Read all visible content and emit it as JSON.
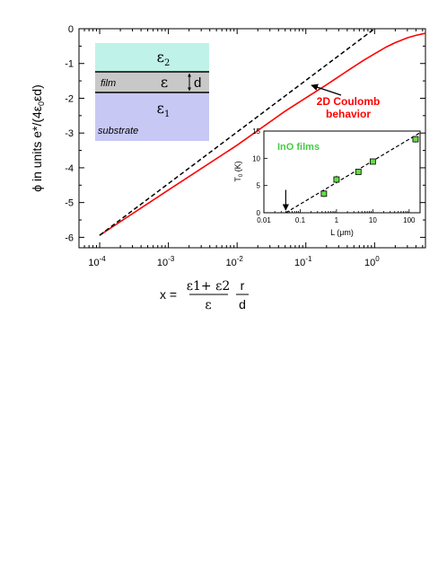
{
  "chart_data": [
    {
      "type": "line",
      "title": "",
      "xlabel": "x = (ε1+ ε2)/ε · r/d",
      "xlabel_parts": {
        "lhs": "x =",
        "num": "ε1+ ε2",
        "den": "ε",
        "r": "r",
        "d": "d"
      },
      "ylabel": "ϕ in units e*/(4ε0εd)",
      "xscale": "log",
      "xlim": [
        5e-05,
        5.5
      ],
      "ylim": [
        -6.3,
        0
      ],
      "xticks": [
        0.0001,
        0.001,
        0.01,
        0.1,
        1
      ],
      "xtick_labels": [
        {
          "base": "10",
          "exp": "-4"
        },
        {
          "base": "10",
          "exp": "-3"
        },
        {
          "base": "10",
          "exp": "-2"
        },
        {
          "base": "10",
          "exp": "-1"
        },
        {
          "base": "10",
          "exp": "0"
        }
      ],
      "yticks": [
        0,
        -1,
        -2,
        -3,
        -4,
        -5,
        -6
      ],
      "ytick_labels": [
        "0",
        "-1",
        "-2",
        "-3",
        "-4",
        "-5",
        "-6"
      ],
      "grid": false,
      "series": [
        {
          "style": "solid",
          "color": "#ff0000",
          "x": [
            0.0001,
            0.001,
            0.01,
            0.05,
            0.1,
            0.2,
            0.3,
            0.5,
            0.7,
            1.0,
            1.5,
            2.0,
            3.0,
            4.0,
            5.5
          ],
          "y": [
            -5.94,
            -4.64,
            -3.35,
            -2.37,
            -1.99,
            -1.61,
            -1.38,
            -1.09,
            -0.9,
            -0.72,
            -0.52,
            -0.4,
            -0.26,
            -0.19,
            -0.13
          ]
        },
        {
          "style": "dashed",
          "color": "#000000",
          "x": [
            0.0001,
            1.0
          ],
          "y": [
            -5.94,
            0
          ]
        }
      ],
      "annotations": [
        {
          "text_lines": [
            "2D Coulomb",
            "behavior"
          ],
          "color": "#ff0000",
          "points_to": {
            "x": 0.12,
            "y": -1.6
          }
        }
      ],
      "layer_diagram": {
        "top_layer": {
          "label": "ε2",
          "color": "#bff2e8"
        },
        "film_layer": {
          "label": "ε",
          "side_label": "film",
          "thickness_label": "d",
          "color": "#c8c8c8"
        },
        "substrate_layer": {
          "label": "ε1",
          "side_label": "substrate",
          "color": "#c8c8f5"
        }
      }
    },
    {
      "type": "scatter",
      "title": "InO films",
      "title_color": "#44cc44",
      "xlabel": "L (μm)",
      "ylabel": "T0 (K)",
      "ylabel_parts": {
        "base": "T",
        "sub": "0",
        "rest": " (K)"
      },
      "xscale": "log",
      "xlim": [
        0.01,
        200
      ],
      "ylim": [
        0,
        15
      ],
      "xticks": [
        0.01,
        0.1,
        1,
        10,
        100
      ],
      "xtick_labels": [
        "0.01",
        "0.1",
        "1",
        "10",
        "100"
      ],
      "yticks": [
        0,
        5,
        10,
        15
      ],
      "ytick_labels": [
        "0",
        "5",
        "10",
        "15"
      ],
      "marker_color": "#66dd44",
      "points": [
        {
          "x": 0.45,
          "y": 3.5,
          "err": 0.6
        },
        {
          "x": 1.0,
          "y": 6.1,
          "err": 0.7
        },
        {
          "x": 4.0,
          "y": 7.5,
          "err": 0.5
        },
        {
          "x": 10.0,
          "y": 9.4,
          "err": 0.3
        },
        {
          "x": 150.0,
          "y": 13.5,
          "err": 0.6
        }
      ],
      "fit_line": {
        "style": "dashed",
        "x": [
          0.04,
          200
        ],
        "y": [
          0,
          14.7
        ]
      },
      "arrow": {
        "x": 0.04,
        "y_from": 4.2,
        "y_to": 0.5
      }
    }
  ]
}
